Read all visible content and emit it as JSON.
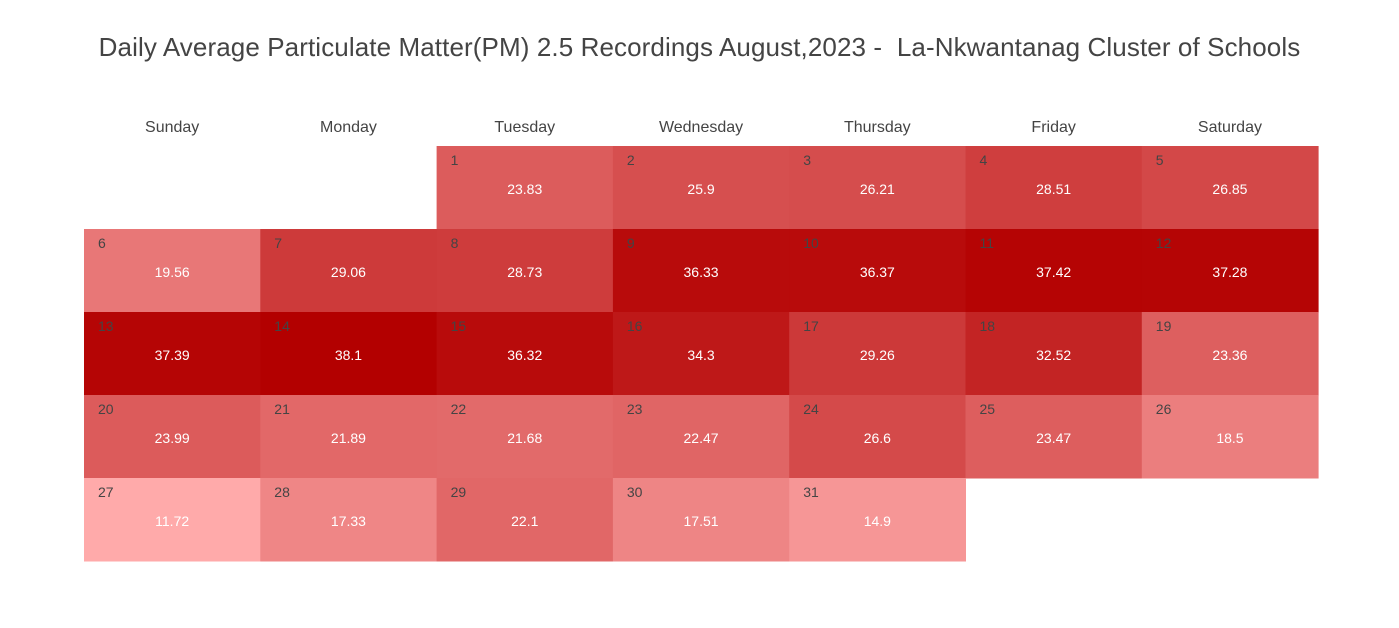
{
  "title": "Daily Average Particulate Matter(PM) 2.5 Recordings August,2023 -  La-Nkwantanag Cluster of Schools",
  "chart_data": {
    "type": "heatmap",
    "layout": "calendar",
    "month": "August 2023",
    "first_weekday_index": 2,
    "weekdays": [
      "Sunday",
      "Monday",
      "Tuesday",
      "Wednesday",
      "Thursday",
      "Friday",
      "Saturday"
    ],
    "days": [
      {
        "day": 1,
        "value": 23.83
      },
      {
        "day": 2,
        "value": 25.9
      },
      {
        "day": 3,
        "value": 26.21
      },
      {
        "day": 4,
        "value": 28.51
      },
      {
        "day": 5,
        "value": 26.85
      },
      {
        "day": 6,
        "value": 19.56
      },
      {
        "day": 7,
        "value": 29.06
      },
      {
        "day": 8,
        "value": 28.73
      },
      {
        "day": 9,
        "value": 36.33
      },
      {
        "day": 10,
        "value": 36.37
      },
      {
        "day": 11,
        "value": 37.42
      },
      {
        "day": 12,
        "value": 37.28
      },
      {
        "day": 13,
        "value": 37.39
      },
      {
        "day": 14,
        "value": 38.1
      },
      {
        "day": 15,
        "value": 36.32
      },
      {
        "day": 16,
        "value": 34.3
      },
      {
        "day": 17,
        "value": 29.26
      },
      {
        "day": 18,
        "value": 32.52
      },
      {
        "day": 19,
        "value": 23.36
      },
      {
        "day": 20,
        "value": 23.99
      },
      {
        "day": 21,
        "value": 21.89
      },
      {
        "day": 22,
        "value": 21.68
      },
      {
        "day": 23,
        "value": 22.47
      },
      {
        "day": 24,
        "value": 26.6
      },
      {
        "day": 25,
        "value": 23.47
      },
      {
        "day": 26,
        "value": 18.5
      },
      {
        "day": 27,
        "value": 11.72
      },
      {
        "day": 28,
        "value": 17.33
      },
      {
        "day": 29,
        "value": 22.1
      },
      {
        "day": 30,
        "value": 17.51
      },
      {
        "day": 31,
        "value": 14.9
      }
    ],
    "color_scale": {
      "low": "#ffaaaa",
      "high": "#b30000",
      "min": 11.72,
      "max": 38.1
    },
    "legend": "none"
  }
}
